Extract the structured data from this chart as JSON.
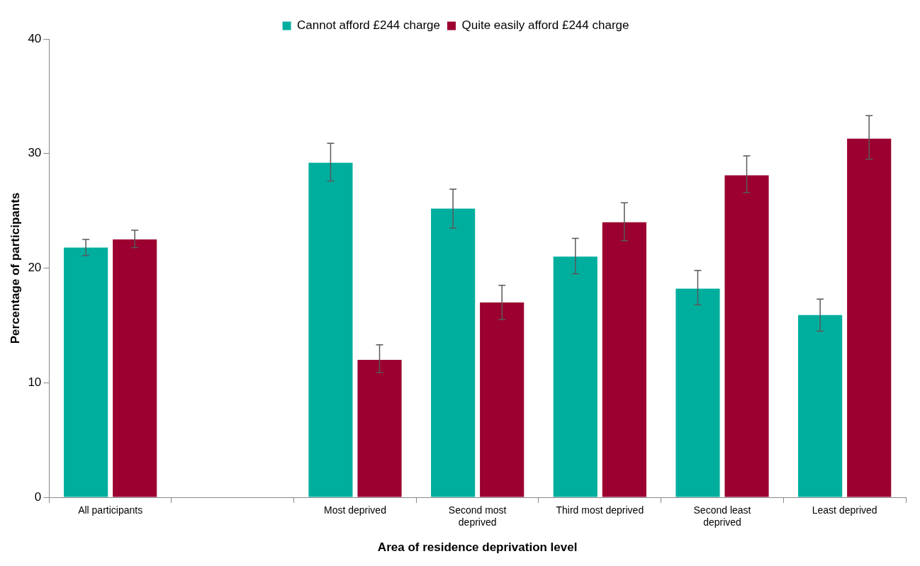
{
  "chart_data": {
    "type": "bar",
    "xlabel": "Area of residence deprivation level",
    "ylabel": "Percentage of participants",
    "categories": [
      "All participants",
      null,
      "Most deprived",
      "Second most deprived",
      "Third most deprived",
      "Second least deprived",
      "Least deprived"
    ],
    "series": [
      {
        "name": "Cannot afford £244 charge",
        "color": "#00ae9e",
        "values": [
          21.8,
          null,
          29.2,
          25.2,
          21.0,
          18.2,
          15.9
        ],
        "errors": [
          [
            21.1,
            22.5
          ],
          null,
          [
            27.6,
            30.9
          ],
          [
            23.5,
            26.9
          ],
          [
            19.5,
            22.6
          ],
          [
            16.8,
            19.8
          ],
          [
            14.5,
            17.3
          ]
        ]
      },
      {
        "name": "Quite easily afford £244 charge",
        "color": "#9b0030",
        "values": [
          22.5,
          null,
          12.0,
          17.0,
          24.0,
          28.1,
          31.3
        ],
        "errors": [
          [
            21.8,
            23.3
          ],
          null,
          [
            10.9,
            13.3
          ],
          [
            15.5,
            18.5
          ],
          [
            22.4,
            25.7
          ],
          [
            26.6,
            29.8
          ],
          [
            29.5,
            33.3
          ]
        ]
      }
    ],
    "ylim": [
      0,
      40
    ],
    "yticks": [
      0,
      10,
      20,
      30,
      40
    ],
    "grid": false,
    "legend": "top"
  }
}
